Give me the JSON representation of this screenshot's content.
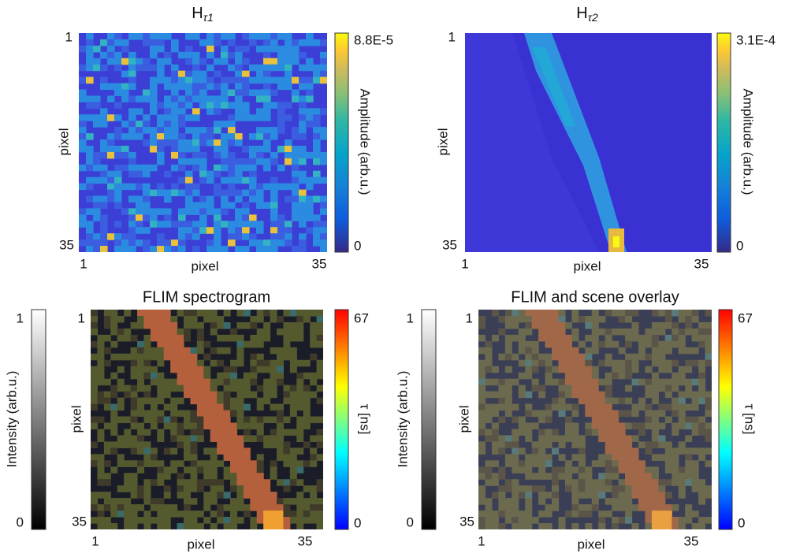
{
  "panels": [
    {
      "title": {
        "main": "H",
        "sub": "τ1"
      },
      "y_label": "pixel",
      "x_label": "pixel",
      "y_ticks": [
        "1",
        "35"
      ],
      "x_ticks": [
        "1",
        "35"
      ],
      "colorbar": {
        "label": "Amplitude (arb.u.)",
        "ticks": [
          "8.8E-5",
          "0"
        ]
      }
    },
    {
      "title": {
        "main": "H",
        "sub": "τ2"
      },
      "y_label": "pixel",
      "x_label": "pixel",
      "y_ticks": [
        "1",
        "35"
      ],
      "x_ticks": [
        "1",
        "35"
      ],
      "colorbar": {
        "label": "Amplitude (arb.u.)",
        "ticks": [
          "3.1E-4",
          "0"
        ]
      }
    },
    {
      "title": "FLIM spectrogram",
      "y_label": "pixel",
      "x_label": "pixel",
      "y_ticks": [
        "1",
        "35"
      ],
      "x_ticks": [
        "1",
        "35"
      ],
      "intensity_bar": {
        "label": "Intensity (arb.u.)",
        "ticks": [
          "1",
          "0"
        ]
      },
      "colorbar": {
        "label": "τ [ns]",
        "ticks": [
          "67",
          "0"
        ]
      }
    },
    {
      "title": "FLIM and scene overlay",
      "y_label": "pixel",
      "x_label": "pixel",
      "y_ticks": [
        "1",
        "35"
      ],
      "x_ticks": [
        "1",
        "35"
      ],
      "intensity_bar": {
        "label": "Intensity (arb.u.)",
        "ticks": [
          "1",
          "0"
        ]
      },
      "colorbar": {
        "label": "τ [ns]",
        "ticks": [
          "67",
          "0"
        ]
      }
    }
  ]
}
